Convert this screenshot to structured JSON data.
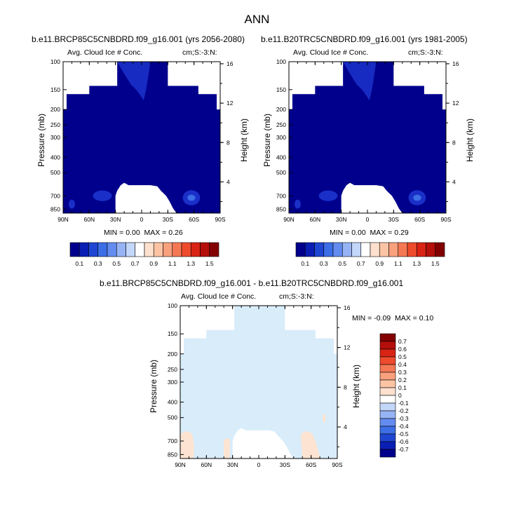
{
  "title": "ANN",
  "colors": {
    "background": "#ffffff",
    "mask": "#ffffff",
    "frame": "#000000"
  },
  "panels": [
    {
      "title": "b.e11.BRCP85C5CNBDRD.f09_g16.001 (yrs 2056-2080)",
      "left_label": "Avg. Cloud Ice # Conc.",
      "right_label": "cm;S:-3:N:",
      "ylabel": "Pressure (mb)",
      "ylabel_right": "Height (km)",
      "min_label": "MIN =",
      "min_value": "0.00",
      "max_label": "MAX =",
      "max_value": "0.26",
      "fill_color": "#00008c",
      "feature_color": "#1a2fc8"
    },
    {
      "title": "b.e11.B20TRC5CNBDRD.f09_g16.001 (yrs 1981-2005)",
      "left_label": "Avg. Cloud Ice # Conc.",
      "right_label": "cm;S:-3:N:",
      "ylabel": "Pressure (mb)",
      "ylabel_right": "Height (km)",
      "min_label": "MIN =",
      "min_value": "0.00",
      "max_label": "MAX =",
      "max_value": "0.29",
      "fill_color": "#00008c",
      "feature_color": "#1a2fc8"
    },
    {
      "title": "b.e11.BRCP85C5CNBDRD.f09_g16.001 - b.e11.B20TRC5CNBDRD.f09_g16.001",
      "left_label": "Avg. Cloud Ice # Conc.",
      "right_label": "cm;S:-3:N:",
      "ylabel": "Pressure (mb)",
      "ylabel_right": "Height (km)",
      "min_label": "MIN =",
      "min_value": "-0.09",
      "max_label": "MAX =",
      "max_value": "0.10",
      "fill_color": "#d8ecfa",
      "feature_color": "#fde4d2"
    }
  ],
  "chart_data": {
    "type": "heatmap",
    "x_ticks": [
      "90N",
      "60N",
      "30N",
      "0",
      "30S",
      "60S",
      "90S"
    ],
    "pressure_ticks": [
      "100",
      "150",
      "200",
      "250",
      "300",
      "400",
      "500",
      "700",
      "850"
    ],
    "height_ticks": [
      "16",
      "12",
      "8",
      "4"
    ],
    "xlim": [
      90,
      -90
    ],
    "ylim_mb": [
      100,
      900
    ],
    "y_scale": "log",
    "colorbar_abs": {
      "orientation": "horizontal",
      "labels": [
        "0.1",
        "0.3",
        "0.5",
        "0.7",
        "0.9",
        "1.1",
        "1.3",
        "1.5"
      ],
      "colors": [
        "#00008c",
        "#0a1eb4",
        "#1e46d2",
        "#3c6ee6",
        "#648cf0",
        "#96b4f5",
        "#c3d7fa",
        "#ffffff",
        "#fde0cd",
        "#fcc4a5",
        "#f9a07d",
        "#f57855",
        "#ee4b2d",
        "#d92314",
        "#b40f0a",
        "#820000"
      ]
    },
    "colorbar_diff": {
      "orientation": "vertical",
      "labels": [
        "0.7",
        "0.6",
        "0.5",
        "0.4",
        "0.3",
        "0.2",
        "0.1",
        "0",
        "-0.1",
        "-0.2",
        "-0.3",
        "-0.4",
        "-0.5",
        "-0.6",
        "-0.7"
      ],
      "colors": [
        "#820000",
        "#b40f0a",
        "#d92314",
        "#ee4b2d",
        "#f57855",
        "#f9a07d",
        "#fcc4a5",
        "#fde0cd",
        "#ffffff",
        "#c3d7fa",
        "#96b4f5",
        "#648cf0",
        "#3c6ee6",
        "#1e46d2",
        "#0a1eb4",
        "#00008c"
      ]
    }
  }
}
